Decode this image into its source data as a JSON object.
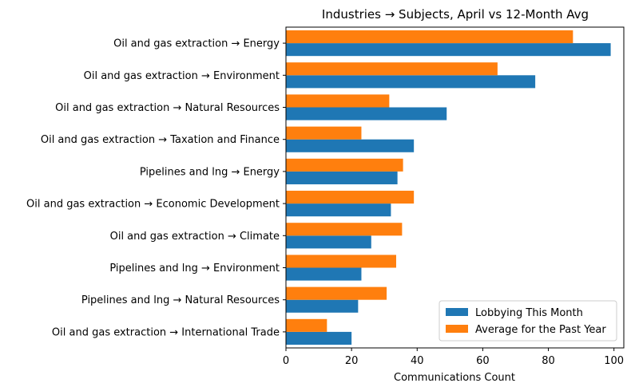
{
  "chart_data": {
    "type": "bar",
    "orientation": "horizontal",
    "title": "Industries → Subjects, April vs 12-Month Avg",
    "xlabel": "Communications Count",
    "ylabel": "",
    "xlim": [
      0,
      103
    ],
    "xticks": [
      0,
      20,
      40,
      60,
      80,
      100
    ],
    "grid": false,
    "legend_position": "lower-right",
    "categories": [
      "Oil and gas extraction → Energy",
      "Oil and gas extraction → Environment",
      "Oil and gas extraction → Natural Resources",
      "Oil and gas extraction → Taxation and Finance",
      "Pipelines and lng → Energy",
      "Oil and gas extraction → Economic Development",
      "Oil and gas extraction → Climate",
      "Pipelines and lng → Environment",
      "Pipelines and lng → Natural Resources",
      "Oil and gas extraction → International Trade"
    ],
    "series": [
      {
        "name": "Lobbying This Month",
        "color": "#1f77b4",
        "values": [
          99,
          76,
          49,
          39,
          34,
          32,
          26,
          23,
          22,
          20
        ]
      },
      {
        "name": "Average for the Past Year",
        "color": "#ff7f0e",
        "values": [
          87.5,
          64.5,
          31.5,
          23,
          35.7,
          39,
          35.4,
          33.6,
          30.7,
          12.5
        ]
      }
    ]
  }
}
